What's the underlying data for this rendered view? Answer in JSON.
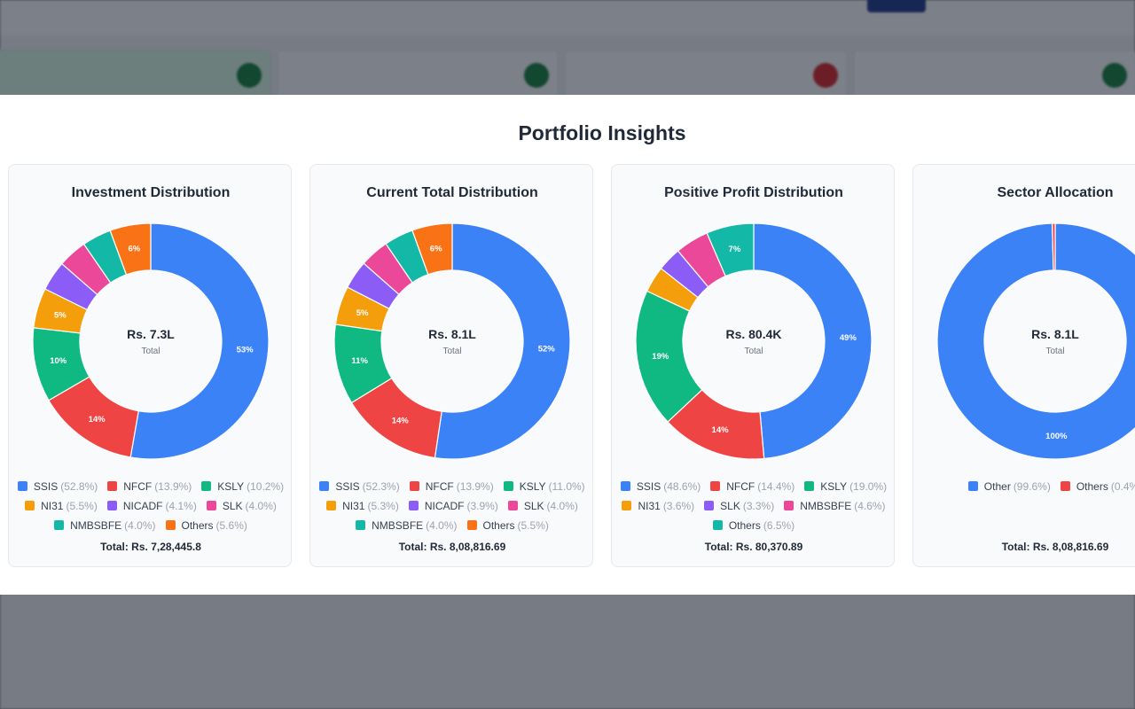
{
  "modal_title": "Portfolio Insights",
  "colors": {
    "blue": "#3b82f6",
    "red": "#ef4444",
    "green": "#10b981",
    "amber": "#f59e0b",
    "violet": "#8b5cf6",
    "pink": "#ec4899",
    "teal": "#14b8a6",
    "orange": "#f97316"
  },
  "chart_data": [
    {
      "type": "pie",
      "title": "Investment Distribution",
      "center_value": "Rs. 7.3L",
      "center_label": "Total",
      "total_text": "Total: Rs. 7,28,445.8",
      "slices": [
        {
          "name": "SSIS",
          "value": 52.8,
          "pct_label": "(52.8%)",
          "slice_label": "53%",
          "color": "#3b82f6"
        },
        {
          "name": "NFCF",
          "value": 13.9,
          "pct_label": "(13.9%)",
          "slice_label": "14%",
          "color": "#ef4444"
        },
        {
          "name": "KSLY",
          "value": 10.2,
          "pct_label": "(10.2%)",
          "slice_label": "10%",
          "color": "#10b981"
        },
        {
          "name": "NI31",
          "value": 5.5,
          "pct_label": "(5.5%)",
          "slice_label": "5%",
          "color": "#f59e0b"
        },
        {
          "name": "NICADF",
          "value": 4.1,
          "pct_label": "(4.1%)",
          "slice_label": "",
          "color": "#8b5cf6"
        },
        {
          "name": "SLK",
          "value": 4.0,
          "pct_label": "(4.0%)",
          "slice_label": "",
          "color": "#ec4899"
        },
        {
          "name": "NMBSBFE",
          "value": 4.0,
          "pct_label": "(4.0%)",
          "slice_label": "",
          "color": "#14b8a6"
        },
        {
          "name": "Others",
          "value": 5.6,
          "pct_label": "(5.6%)",
          "slice_label": "6%",
          "color": "#f97316"
        }
      ]
    },
    {
      "type": "pie",
      "title": "Current Total Distribution",
      "center_value": "Rs. 8.1L",
      "center_label": "Total",
      "total_text": "Total: Rs. 8,08,816.69",
      "slices": [
        {
          "name": "SSIS",
          "value": 52.3,
          "pct_label": "(52.3%)",
          "slice_label": "52%",
          "color": "#3b82f6"
        },
        {
          "name": "NFCF",
          "value": 13.9,
          "pct_label": "(13.9%)",
          "slice_label": "14%",
          "color": "#ef4444"
        },
        {
          "name": "KSLY",
          "value": 11.0,
          "pct_label": "(11.0%)",
          "slice_label": "11%",
          "color": "#10b981"
        },
        {
          "name": "NI31",
          "value": 5.3,
          "pct_label": "(5.3%)",
          "slice_label": "5%",
          "color": "#f59e0b"
        },
        {
          "name": "NICADF",
          "value": 3.9,
          "pct_label": "(3.9%)",
          "slice_label": "",
          "color": "#8b5cf6"
        },
        {
          "name": "SLK",
          "value": 4.0,
          "pct_label": "(4.0%)",
          "slice_label": "",
          "color": "#ec4899"
        },
        {
          "name": "NMBSBFE",
          "value": 4.0,
          "pct_label": "(4.0%)",
          "slice_label": "",
          "color": "#14b8a6"
        },
        {
          "name": "Others",
          "value": 5.5,
          "pct_label": "(5.5%)",
          "slice_label": "6%",
          "color": "#f97316"
        }
      ]
    },
    {
      "type": "pie",
      "title": "Positive Profit Distribution",
      "center_value": "Rs. 80.4K",
      "center_label": "Total",
      "total_text": "Total: Rs. 80,370.89",
      "slices": [
        {
          "name": "SSIS",
          "value": 48.6,
          "pct_label": "(48.6%)",
          "slice_label": "49%",
          "color": "#3b82f6"
        },
        {
          "name": "NFCF",
          "value": 14.4,
          "pct_label": "(14.4%)",
          "slice_label": "14%",
          "color": "#ef4444"
        },
        {
          "name": "KSLY",
          "value": 19.0,
          "pct_label": "(19.0%)",
          "slice_label": "19%",
          "color": "#10b981"
        },
        {
          "name": "NI31",
          "value": 3.6,
          "pct_label": "(3.6%)",
          "slice_label": "",
          "color": "#f59e0b"
        },
        {
          "name": "SLK",
          "value": 3.3,
          "pct_label": "(3.3%)",
          "slice_label": "",
          "color": "#8b5cf6"
        },
        {
          "name": "NMBSBFE",
          "value": 4.6,
          "pct_label": "(4.6%)",
          "slice_label": "",
          "color": "#ec4899"
        },
        {
          "name": "Others",
          "value": 6.5,
          "pct_label": "(6.5%)",
          "slice_label": "7%",
          "color": "#14b8a6"
        }
      ]
    },
    {
      "type": "pie",
      "title": "Sector Allocation",
      "center_value": "Rs. 8.1L",
      "center_label": "Total",
      "total_text": "Total: Rs. 8,08,816.69",
      "slices": [
        {
          "name": "Other",
          "value": 99.6,
          "pct_label": "(99.6%)",
          "slice_label": "100%",
          "color": "#3b82f6"
        },
        {
          "name": "Others",
          "value": 0.4,
          "pct_label": "(0.4%)",
          "slice_label": "",
          "color": "#ef4444"
        }
      ]
    }
  ]
}
